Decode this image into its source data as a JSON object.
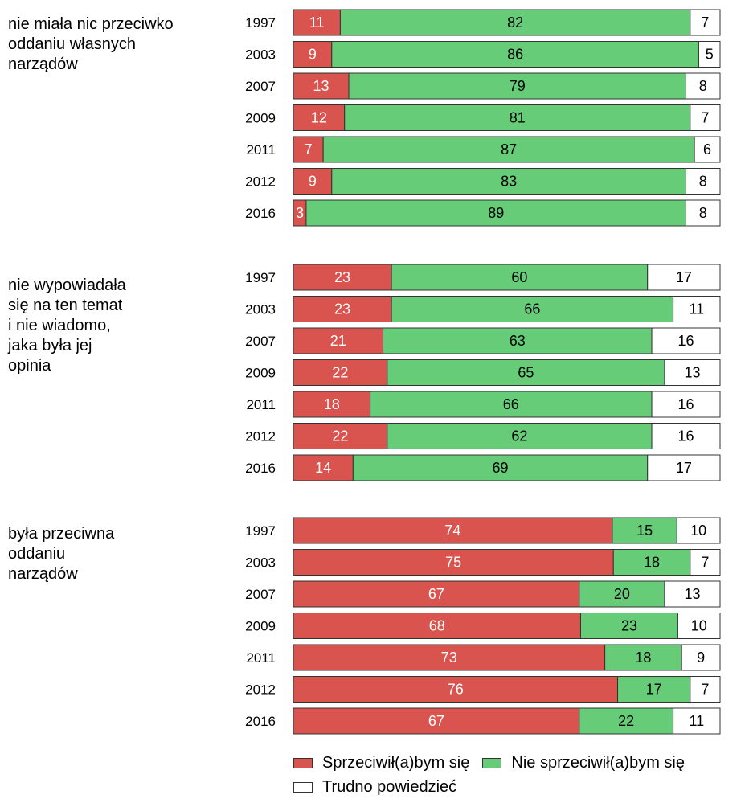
{
  "colors": {
    "against": "#d9534f",
    "not_against": "#66cc77",
    "hard_to_say": "#ffffff"
  },
  "legend": {
    "against": "Sprzeciwił(a)bym się",
    "not_against": "Nie sprzeciwił(a)bym się",
    "hard_to_say": "Trudno powiedzieć"
  },
  "chart_data": {
    "type": "bar",
    "orientation": "horizontal",
    "stacked": true,
    "xlim": [
      0,
      100
    ],
    "series_order": [
      "Sprzeciwił(a)bym się",
      "Nie sprzeciwił(a)bym się",
      "Trudno powiedzieć"
    ],
    "groups": [
      {
        "label": "nie miała nic przeciwko\noddaniu własnych\nnarządów",
        "categories": [
          "1997",
          "2003",
          "2007",
          "2009",
          "2011",
          "2012",
          "2016"
        ],
        "series": [
          {
            "name": "Sprzeciwił(a)bym się",
            "values": [
              11,
              9,
              13,
              12,
              7,
              9,
              3
            ]
          },
          {
            "name": "Nie sprzeciwił(a)bym się",
            "values": [
              82,
              86,
              79,
              81,
              87,
              83,
              89
            ]
          },
          {
            "name": "Trudno powiedzieć",
            "values": [
              7,
              5,
              8,
              7,
              6,
              8,
              8
            ]
          }
        ]
      },
      {
        "label": "nie wypowiadała\nsię na ten temat\ni nie wiadomo,\njaka była jej\nopinia",
        "categories": [
          "1997",
          "2003",
          "2007",
          "2009",
          "2011",
          "2012",
          "2016"
        ],
        "series": [
          {
            "name": "Sprzeciwił(a)bym się",
            "values": [
              23,
              23,
              21,
              22,
              18,
              22,
              14
            ]
          },
          {
            "name": "Nie sprzeciwił(a)bym się",
            "values": [
              60,
              66,
              63,
              65,
              66,
              62,
              69
            ]
          },
          {
            "name": "Trudno powiedzieć",
            "values": [
              17,
              11,
              16,
              13,
              16,
              16,
              17
            ]
          }
        ]
      },
      {
        "label": "była przeciwna\noddaniu\nnarządów",
        "categories": [
          "1997",
          "2003",
          "2007",
          "2009",
          "2011",
          "2012",
          "2016"
        ],
        "series": [
          {
            "name": "Sprzeciwił(a)bym się",
            "values": [
              74,
              75,
              67,
              68,
              73,
              76,
              67
            ]
          },
          {
            "name": "Nie sprzeciwił(a)bym się",
            "values": [
              15,
              18,
              20,
              23,
              18,
              17,
              22
            ]
          },
          {
            "name": "Trudno powiedzieć",
            "values": [
              10,
              7,
              13,
              10,
              9,
              7,
              11
            ]
          }
        ]
      }
    ]
  }
}
